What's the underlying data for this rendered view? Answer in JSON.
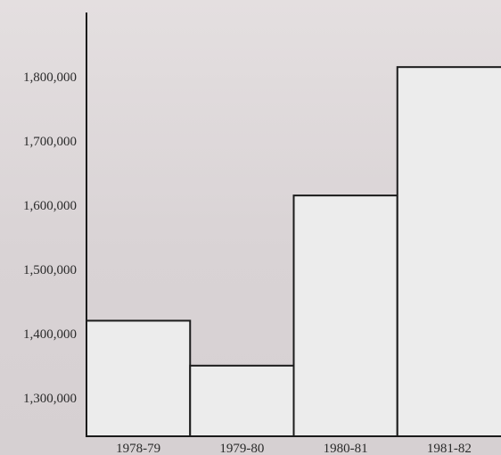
{
  "chart_data": {
    "type": "bar",
    "title": "",
    "xlabel": "",
    "ylabel": "",
    "categories": [
      "1978-79",
      "1979-80",
      "1980-81",
      "1981-82"
    ],
    "values": [
      1420000,
      1350000,
      1615000,
      1815000
    ],
    "ylim": [
      1240000,
      1900000
    ],
    "yticks": [
      1300000,
      1400000,
      1500000,
      1600000,
      1700000,
      1800000
    ],
    "ytick_labels": [
      "1,300,000",
      "1,400,000",
      "1,500,000",
      "1,600,000",
      "1,700,000",
      "1,800,000"
    ],
    "grid": false,
    "legend": "none"
  },
  "colors": {
    "background": "#dcd6d8",
    "bar_fill": "#ececec",
    "bar_stroke": "#1b1b1b",
    "text": "#2a2a2a"
  }
}
